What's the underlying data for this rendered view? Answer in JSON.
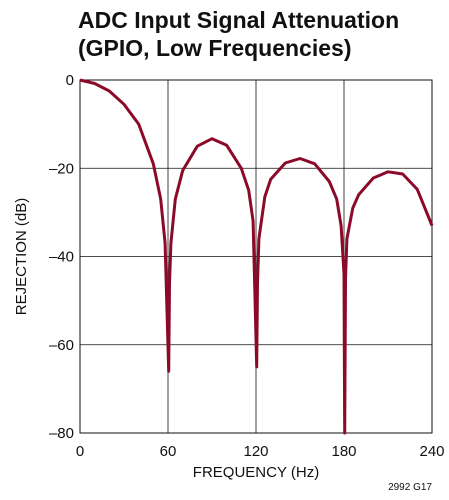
{
  "chart_data": {
    "type": "line",
    "title": [
      "ADC Input Signal Attenuation",
      "(GPIO, Low Frequencies)"
    ],
    "xlabel": "FREQUENCY (Hz)",
    "ylabel": "REJECTION (dB)",
    "xlim": [
      0,
      240
    ],
    "ylim": [
      -80,
      0
    ],
    "xticks": [
      0,
      60,
      120,
      180,
      240
    ],
    "xtick_labels": [
      "0",
      "60",
      "120",
      "180",
      "240"
    ],
    "yticks": [
      0,
      -20,
      -40,
      -60,
      -80
    ],
    "ytick_labels": [
      "0",
      "–20",
      "–40",
      "–60",
      "–80"
    ],
    "grid": true,
    "series_color": "#8b0a2a",
    "series": [
      {
        "x": [
          0,
          10,
          20,
          30,
          40,
          50,
          55,
          58,
          60.5,
          61,
          62,
          65,
          70,
          80,
          90,
          100,
          110,
          115,
          118,
          120.5,
          121,
          122,
          126,
          130,
          140,
          150,
          160,
          170,
          175,
          178,
          180,
          180.5,
          181,
          182,
          186,
          190,
          200,
          210,
          220,
          230,
          240
        ],
        "y": [
          0,
          -0.8,
          -2.5,
          -5.5,
          -10,
          -19,
          -27,
          -37,
          -66,
          -46,
          -37,
          -27,
          -20.5,
          -15,
          -13.3,
          -14.8,
          -20,
          -25,
          -32,
          -65,
          -46,
          -36,
          -26.5,
          -22.5,
          -18.8,
          -17.8,
          -19,
          -23,
          -27,
          -33,
          -44,
          -80,
          -45,
          -36,
          -29,
          -26,
          -22.2,
          -20.8,
          -21.3,
          -24.8,
          -33
        ]
      }
    ],
    "annotation": "2992 G17"
  }
}
